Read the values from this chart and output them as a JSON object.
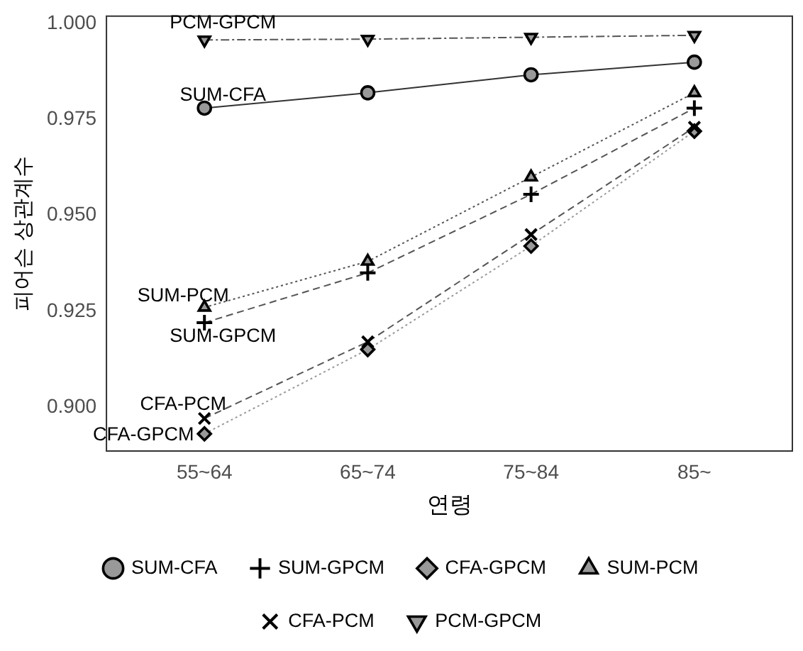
{
  "chart_data": {
    "type": "line",
    "xlabel": "연령",
    "ylabel": "피어슨 상관계수",
    "categories": [
      "55~64",
      "65~74",
      "75~84",
      "85~"
    ],
    "ylim": [
      0.8885,
      1.002
    ],
    "yticks": [
      {
        "value": 0.9,
        "label": "0.900"
      },
      {
        "value": 0.925,
        "label": "0.925"
      },
      {
        "value": 0.95,
        "label": "0.950"
      },
      {
        "value": 0.975,
        "label": "0.975"
      },
      {
        "value": 1.0,
        "label": "1.000"
      }
    ],
    "grid": false,
    "legend": "bottom",
    "series": [
      {
        "name": "SUM-CFA",
        "color": "#333333",
        "marker": "circle",
        "line_style": "solid",
        "values": [
          0.978,
          0.982,
          0.9867,
          0.99
        ]
      },
      {
        "name": "SUM-GPCM",
        "color": "#555555",
        "marker": "cross",
        "line_style": "dashed",
        "values": [
          0.922,
          0.935,
          0.9555,
          0.978
        ]
      },
      {
        "name": "CFA-GPCM",
        "color": "#999999",
        "marker": "diamond",
        "line_style": "dotted",
        "values": [
          0.893,
          0.915,
          0.942,
          0.972
        ]
      },
      {
        "name": "SUM-PCM",
        "color": "#555555",
        "marker": "triangle",
        "line_style": "dotted",
        "values": [
          0.926,
          0.938,
          0.96,
          0.982
        ]
      },
      {
        "name": "CFA-PCM",
        "color": "#555555",
        "marker": "x",
        "line_style": "dashed",
        "values": [
          0.897,
          0.917,
          0.945,
          0.973
        ]
      },
      {
        "name": "PCM-GPCM",
        "color": "#555555",
        "marker": "triangle-down",
        "line_style": "dashdot",
        "values": [
          0.9958,
          0.996,
          0.9965,
          0.997
        ]
      }
    ],
    "annotations": [
      {
        "text": "PCM-GPCM",
        "x": "55~64",
        "y": 0.9958
      },
      {
        "text": "SUM-CFA",
        "x": "55~64",
        "y": 0.978
      },
      {
        "text": "SUM-PCM",
        "x": "55~64",
        "y": 0.926
      },
      {
        "text": "SUM-GPCM",
        "x": "55~64",
        "y": 0.922
      },
      {
        "text": "CFA-PCM",
        "x": "55~64",
        "y": 0.897
      },
      {
        "text": "CFA-GPCM",
        "x": "55~64",
        "y": 0.893
      }
    ]
  }
}
